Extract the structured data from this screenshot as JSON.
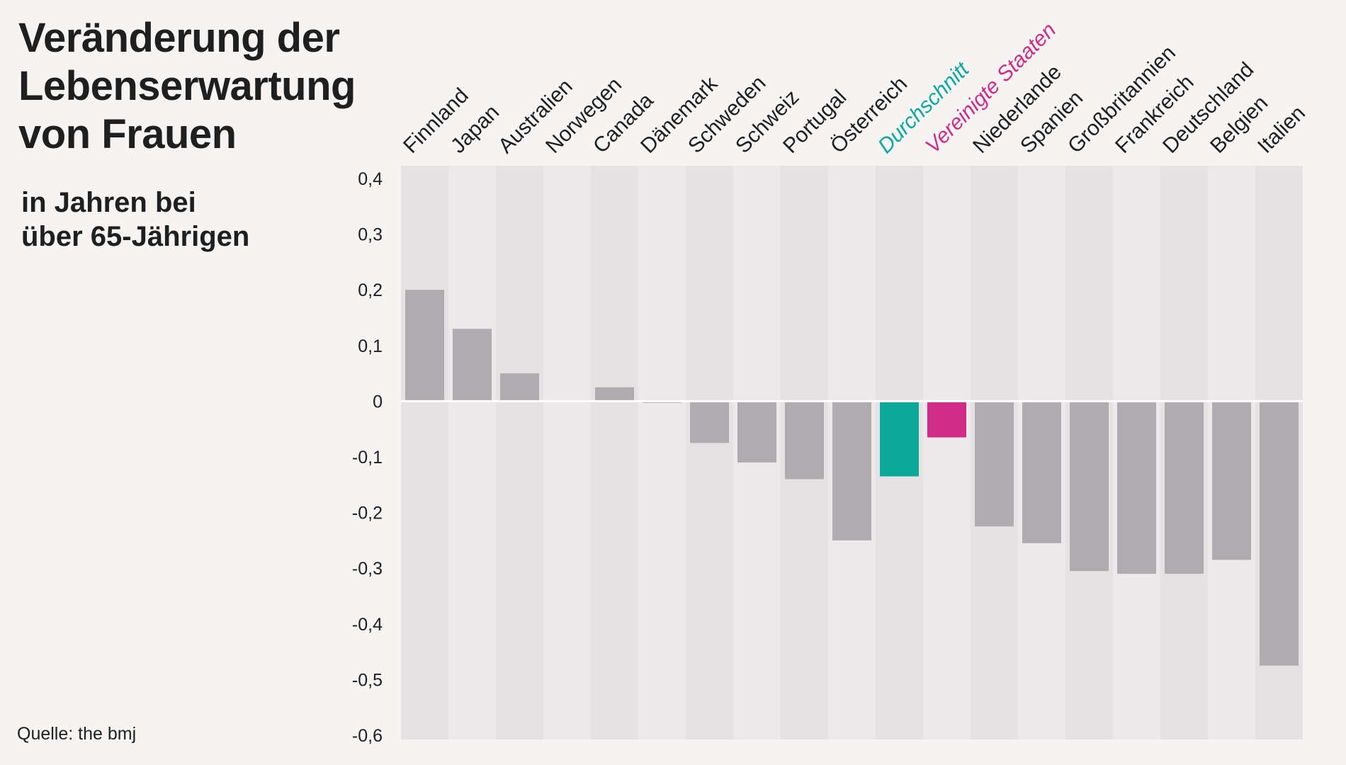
{
  "title_lines": [
    "Veränderung der",
    "Lebenserwartung",
    "von Frauen"
  ],
  "subtitle_lines": [
    "in Jahren bei",
    "über 65-Jährigen"
  ],
  "source": "Quelle: the bmj",
  "colors": {
    "bar_default": "#b0abae",
    "highlight_average": "#0ba89b",
    "highlight_us": "#d12b86",
    "column_bg_a": "#e6e2e3",
    "column_bg_b": "#ede8e9",
    "text": "#1f1f1f"
  },
  "chart_data": {
    "type": "bar",
    "categories": [
      "Finnland",
      "Japan",
      "Australien",
      "Norwegen",
      "Canada",
      "Dänemark",
      "Schweden",
      "Schweiz",
      "Portugal",
      "Österreich",
      "Durchschnitt",
      "Vereinigte Staaten",
      "Niederlande",
      "Spanien",
      "Großbritannien",
      "Frankreich",
      "Deutschland",
      "Belgien",
      "Italien"
    ],
    "values": [
      0.2,
      0.13,
      0.05,
      0.0,
      0.025,
      -0.003,
      -0.075,
      -0.11,
      -0.14,
      -0.25,
      -0.135,
      -0.065,
      -0.225,
      -0.255,
      -0.305,
      -0.31,
      -0.31,
      -0.285,
      -0.475
    ],
    "highlights": {
      "Durchschnitt": "#0ba89b",
      "Vereinigte Staaten": "#d12b86"
    },
    "ylim": [
      -0.6,
      0.4
    ],
    "yticks": [
      0.4,
      0.3,
      0.2,
      0.1,
      0,
      -0.1,
      -0.2,
      -0.3,
      -0.4,
      -0.5,
      -0.6
    ],
    "ytick_labels": [
      "0,4",
      "0,3",
      "0,2",
      "0,1",
      "0",
      "-0,1",
      "-0,2",
      "-0,3",
      "-0,4",
      "-0,5",
      "-0,6"
    ],
    "title": "Veränderung der Lebenserwartung von Frauen",
    "subtitle": "in Jahren bei über 65-Jährigen",
    "xlabel": "",
    "ylabel": "",
    "grid": false,
    "legend": "none"
  }
}
